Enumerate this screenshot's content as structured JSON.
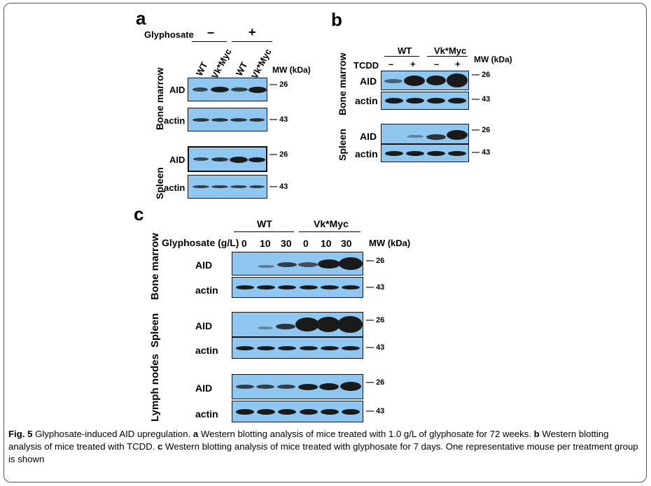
{
  "panels": {
    "a": {
      "letter": "a",
      "treatment_label": "Glyphosate",
      "minus": "–",
      "plus": "+",
      "lanes": [
        "WT",
        "Vk*Myc",
        "WT",
        "Vk*Myc"
      ],
      "mw_label": "MW (kDa)",
      "tissues": [
        "Bone marrow",
        "Spleen"
      ],
      "blot_labels": {
        "aid": "AID",
        "actin": "actin"
      },
      "mw": {
        "aid": "26",
        "actin": "43"
      }
    },
    "b": {
      "letter": "b",
      "groups": [
        "WT",
        "Vk*Myc"
      ],
      "treatment_label": "TCDD",
      "signs": [
        "–",
        "+",
        "–",
        "+"
      ],
      "mw_label": "MW (kDa)",
      "tissues": [
        "Bone marrow",
        "Spleen"
      ],
      "blot_labels": {
        "aid": "AID",
        "actin": "actin"
      },
      "mw": {
        "aid": "26",
        "actin": "43"
      }
    },
    "c": {
      "letter": "c",
      "groups": [
        "WT",
        "Vk*Myc"
      ],
      "dose_label": "Glyphosate (g/L)",
      "doses": [
        "0",
        "10",
        "30",
        "0",
        "10",
        "30"
      ],
      "mw_label": "MW (kDa)",
      "tissues": [
        "Bone marrow",
        "Spleen",
        "Lymph nodes"
      ],
      "blot_labels": {
        "aid": "AID",
        "actin": "actin"
      },
      "mw": {
        "aid": "26",
        "actin": "43"
      }
    }
  },
  "caption": {
    "fig": "Fig. 5",
    "title": " Glyphosate-induced AID upregulation. ",
    "a": "a",
    "a_text": " Western blotting analysis of mice treated with 1.0 g/L of glyphosate for 72 weeks. ",
    "b": "b",
    "b_text": " Western blotting analysis of mice treated with TCDD. ",
    "c": "c",
    "c_text": " Western blotting analysis of mice treated with glyphosate for 7 days. One representative mouse per treatment group is shown"
  },
  "colors": {
    "membrane": "#8fc7f0",
    "band": "#1a1a1a"
  }
}
